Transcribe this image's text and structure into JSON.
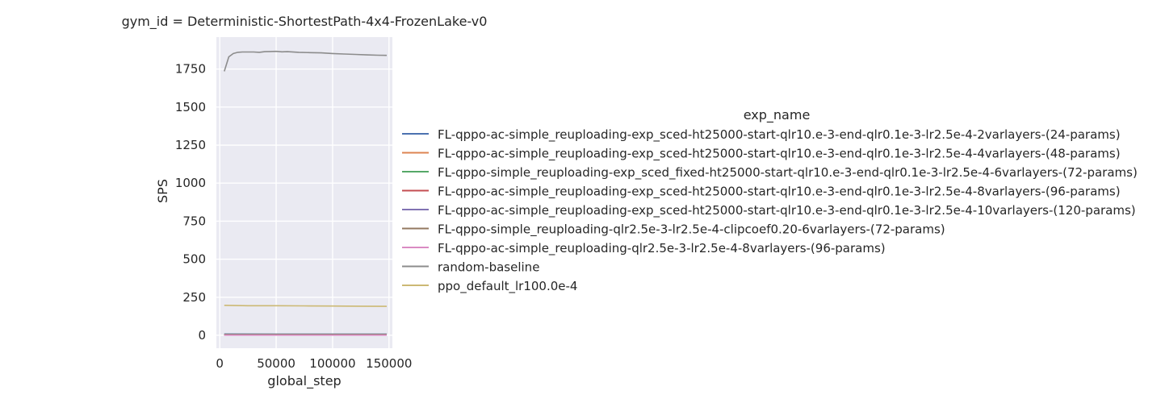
{
  "chart_data": {
    "type": "line",
    "title": "gym_id = Deterministic-ShortestPath-4x4-FrozenLake-v0",
    "xlabel": "global_step",
    "ylabel": "SPS",
    "xlim": [
      -3000,
      153000
    ],
    "ylim": [
      -85,
      1960
    ],
    "xticks": [
      0,
      50000,
      100000,
      150000
    ],
    "yticks": [
      0,
      250,
      500,
      750,
      1000,
      1250,
      1500,
      1750
    ],
    "grid": true,
    "legend_title": "exp_name",
    "legend_position": "right",
    "series": [
      {
        "name": "FL-qppo-ac-simple_reuploading-exp_sced-ht25000-start-qlr10.e-3-end-qlr0.1e-3-lr2.5e-4-2varlayers-(24-params)",
        "color": "#4c72b0",
        "x": [
          4000,
          50000,
          100000,
          148000
        ],
        "y": [
          8,
          7,
          7,
          7
        ]
      },
      {
        "name": "FL-qppo-ac-simple_reuploading-exp_sced-ht25000-start-qlr10.e-3-end-qlr0.1e-3-lr2.5e-4-4varlayers-(48-params)",
        "color": "#dd8452",
        "x": [
          4000,
          50000,
          100000,
          148000
        ],
        "y": [
          5,
          5,
          5,
          5
        ]
      },
      {
        "name": "FL-qppo-simple_reuploading-exp_sced_fixed-ht25000-start-qlr10.e-3-end-qlr0.1e-3-lr2.5e-4-6varlayers-(72-params)",
        "color": "#55a868",
        "x": [
          4000,
          50000,
          100000,
          148000
        ],
        "y": [
          4,
          4,
          4,
          4
        ]
      },
      {
        "name": "FL-qppo-ac-simple_reuploading-exp_sced-ht25000-start-qlr10.e-3-end-qlr0.1e-3-lr2.5e-4-8varlayers-(96-params)",
        "color": "#c44e52",
        "x": [
          4000,
          50000,
          100000,
          148000
        ],
        "y": [
          3,
          3,
          3,
          3
        ]
      },
      {
        "name": "FL-qppo-ac-simple_reuploading-exp_sced-ht25000-start-qlr10.e-3-end-qlr0.1e-3-lr2.5e-4-10varlayers-(120-params)",
        "color": "#8172b3",
        "x": [
          4000,
          50000,
          100000,
          148000
        ],
        "y": [
          2,
          2,
          2,
          2
        ]
      },
      {
        "name": "FL-qppo-simple_reuploading-qlr2.5e-3-lr2.5e-4-clipcoef0.20-6varlayers-(72-params)",
        "color": "#937860",
        "x": [
          4000,
          50000,
          100000,
          148000
        ],
        "y": [
          3,
          3,
          3,
          3
        ]
      },
      {
        "name": "FL-qppo-ac-simple_reuploading-qlr2.5e-3-lr2.5e-4-8varlayers-(96-params)",
        "color": "#da8bc3",
        "x": [
          4000,
          50000,
          100000,
          148000
        ],
        "y": [
          1,
          1,
          1,
          1
        ]
      },
      {
        "name": "random-baseline",
        "color": "#8c8c8c",
        "x": [
          4000,
          8000,
          12000,
          16000,
          20000,
          30000,
          35000,
          40000,
          45000,
          50000,
          55000,
          60000,
          70000,
          80000,
          90000,
          100000,
          110000,
          120000,
          130000,
          140000,
          148000
        ],
        "y": [
          1735,
          1830,
          1852,
          1860,
          1862,
          1862,
          1860,
          1864,
          1865,
          1866,
          1863,
          1864,
          1860,
          1858,
          1856,
          1852,
          1849,
          1846,
          1843,
          1841,
          1840
        ]
      },
      {
        "name": "ppo_default_lr100.0e-4",
        "color": "#ccb974",
        "x": [
          4000,
          25000,
          50000,
          75000,
          100000,
          125000,
          148000
        ],
        "y": [
          197,
          194,
          194,
          193,
          192,
          191,
          190
        ]
      }
    ]
  }
}
